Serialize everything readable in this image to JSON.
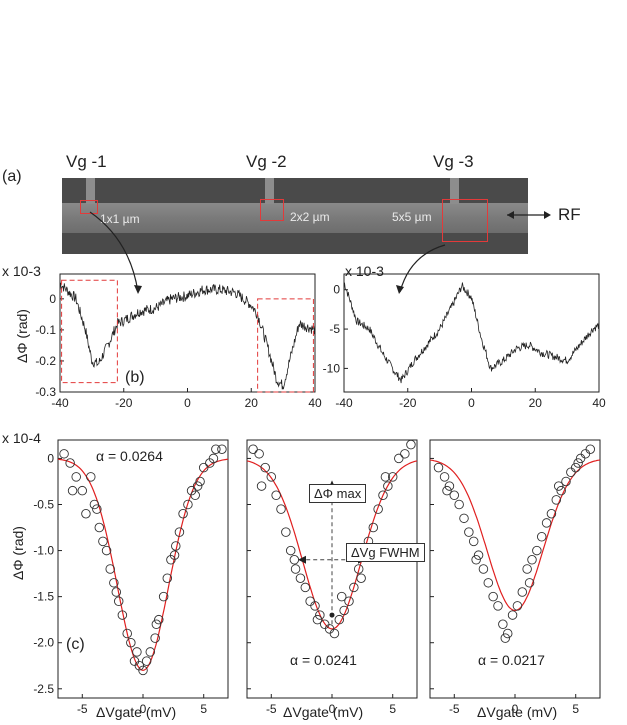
{
  "panel_a": {
    "label": "(a)",
    "gates": [
      "Vg -1",
      "Vg -2",
      "Vg -3"
    ],
    "sizes": [
      "1x1 µm",
      "2x2 µm",
      "5x5 µm"
    ],
    "rf_label": "RF"
  },
  "panel_b": {
    "label": "(b)",
    "left_scale": "x 10-3",
    "right_scale": "x 10-3",
    "ylabel": "ΔΦ (rad)"
  },
  "panel_c": {
    "label": "(c)",
    "scale": "x 10-4",
    "ylabel": "ΔΦ (rad)",
    "xlabel": "ΔVgate (mV)",
    "alphas": [
      "α = 0.0264",
      "α = 0.0241",
      "α = 0.0217"
    ],
    "annot_max": "ΔΦ max",
    "annot_fwhm": "ΔVg FWHM"
  },
  "colors": {
    "fit": "#e02020",
    "box": "#e23a3a",
    "trace": "#222222"
  },
  "chart_data": [
    {
      "type": "line",
      "x": [
        -40,
        -35,
        -32,
        -30,
        -28,
        -25,
        -22,
        -20,
        -15,
        -10,
        -5,
        0,
        5,
        10,
        15,
        20,
        22,
        25,
        28,
        30,
        32,
        35,
        40
      ],
      "y": [
        0.05,
        0.0,
        -0.1,
        -0.2,
        -0.21,
        -0.15,
        -0.08,
        -0.07,
        -0.04,
        -0.03,
        0.0,
        0.01,
        0.03,
        0.03,
        0.02,
        -0.02,
        -0.05,
        -0.15,
        -0.26,
        -0.28,
        -0.2,
        -0.08,
        -0.1
      ],
      "xlim": [
        -40,
        40
      ],
      "ylim": [
        -0.3,
        0.08
      ],
      "yticks": [
        0,
        -0.1,
        -0.2,
        -0.3
      ],
      "xticks": [
        -40,
        -20,
        0,
        20,
        40
      ]
    },
    {
      "type": "line",
      "x": [
        -40,
        -36,
        -32,
        -28,
        -24,
        -22,
        -18,
        -14,
        -10,
        -6,
        -3,
        0,
        3,
        6,
        10,
        14,
        18,
        22,
        26,
        30,
        34,
        38,
        40
      ],
      "y": [
        1,
        -4,
        -5,
        -8,
        -10.5,
        -11.5,
        -9,
        -7,
        -5,
        -2,
        0.5,
        -1,
        -6,
        -10,
        -9,
        -7.5,
        -7,
        -8,
        -8.5,
        -9,
        -7,
        -5,
        -4.5
      ],
      "xlim": [
        -40,
        40
      ],
      "ylim": [
        -13,
        2
      ],
      "yticks": [
        0,
        -5,
        -10
      ],
      "xticks": [
        -40,
        -20,
        0,
        20,
        40
      ]
    },
    {
      "type": "scatter",
      "name": "α = 0.0264",
      "amplitude": -2.3,
      "sigma": 2.1,
      "x": [
        -6.5,
        -6,
        -5.5,
        -5,
        -4.7,
        -4.3,
        -4,
        -3.6,
        -3.3,
        -3,
        -2.7,
        -2.4,
        -2,
        -1.7,
        -1.3,
        -1,
        -0.7,
        -0.3,
        0,
        0.3,
        0.6,
        1,
        1.3,
        1.7,
        2,
        2.3,
        2.7,
        3,
        3.3,
        3.7,
        4,
        4.3,
        4.7,
        5,
        5.5,
        6,
        6.5,
        -5.8,
        -3.8,
        -2.2,
        -0.5,
        1.1,
        2.6,
        4.5,
        5.8
      ],
      "y": [
        0.05,
        -0.05,
        -0.2,
        -0.35,
        -0.6,
        -0.2,
        -0.5,
        -0.75,
        -0.9,
        -1.0,
        -1.2,
        -1.35,
        -1.55,
        -1.7,
        -1.9,
        -2.0,
        -2.2,
        -2.25,
        -2.3,
        -2.2,
        -2.1,
        -1.95,
        -1.75,
        -1.5,
        -1.3,
        -1.1,
        -0.95,
        -0.8,
        -0.6,
        -0.5,
        -0.35,
        -0.4,
        -0.25,
        -0.1,
        -0.05,
        0.1,
        0.1,
        -0.35,
        -0.55,
        -1.45,
        -2.1,
        -1.8,
        -1.05,
        -0.3,
        0.0
      ],
      "xlim": [
        -7,
        7
      ],
      "ylim": [
        -2.6,
        0.2
      ]
    },
    {
      "type": "scatter",
      "name": "α = 0.0241",
      "amplitude": -1.85,
      "sigma": 2.4,
      "x": [
        -6.5,
        -6,
        -5.5,
        -5,
        -4.6,
        -4.2,
        -3.8,
        -3.4,
        -3,
        -2.6,
        -2.2,
        -1.8,
        -1.4,
        -1,
        -0.6,
        -0.2,
        0.2,
        0.6,
        1,
        1.4,
        1.8,
        2.2,
        2.6,
        3,
        3.4,
        3.8,
        4.2,
        4.6,
        5,
        5.5,
        6,
        6.5,
        -5.8,
        -3.1,
        -1.2,
        0.8,
        2.4,
        4.4
      ],
      "y": [
        0.1,
        0.05,
        -0.1,
        -0.2,
        -0.4,
        -0.55,
        -0.8,
        -1.0,
        -1.2,
        -1.3,
        -1.4,
        -1.55,
        -1.6,
        -1.7,
        -1.8,
        -1.85,
        -1.9,
        -1.75,
        -1.65,
        -1.55,
        -1.4,
        -1.2,
        -1.05,
        -0.9,
        -0.75,
        -0.55,
        -0.4,
        -0.3,
        -0.2,
        0.0,
        0.05,
        0.15,
        -0.3,
        -1.1,
        -1.75,
        -1.5,
        -1.3,
        -0.2
      ],
      "xlim": [
        -7,
        7
      ],
      "ylim": [
        -2.6,
        0.2
      ]
    },
    {
      "type": "scatter",
      "name": "α = 0.0217",
      "amplitude": -1.65,
      "sigma": 2.3,
      "x": [
        -6.3,
        -5.8,
        -5.4,
        -5,
        -4.6,
        -4.2,
        -3.8,
        -3.4,
        -3,
        -2.6,
        -2.2,
        -1.8,
        -1.4,
        -1,
        -0.6,
        -0.2,
        0.2,
        0.6,
        1,
        1.4,
        1.8,
        2.2,
        2.6,
        3,
        3.4,
        3.8,
        4.2,
        4.6,
        5,
        5.4,
        5.8,
        6.2,
        -5.6,
        -3.2,
        -0.8,
        1.2,
        3.6,
        5.2
      ],
      "y": [
        -0.1,
        -0.2,
        -0.3,
        -0.4,
        -0.5,
        -0.65,
        -0.8,
        -0.9,
        -1.05,
        -1.2,
        -1.35,
        -1.5,
        -1.6,
        -1.8,
        -1.9,
        -1.7,
        -1.6,
        -1.45,
        -1.2,
        -1.1,
        -1.0,
        -0.85,
        -0.7,
        -0.6,
        -0.45,
        -0.35,
        -0.25,
        -0.15,
        -0.1,
        0.0,
        0.05,
        0.1,
        -0.35,
        -1.1,
        -1.95,
        -1.35,
        -0.3,
        -0.05
      ],
      "xlim": [
        -7,
        7
      ],
      "ylim": [
        -2.6,
        0.2
      ]
    }
  ]
}
